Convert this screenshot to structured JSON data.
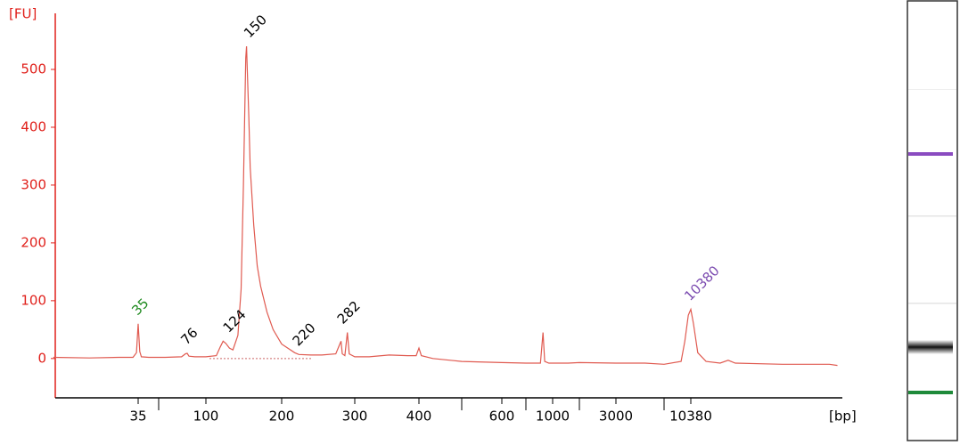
{
  "chart_data": {
    "type": "line",
    "ylabel": "[FU]",
    "xlabel": "[bp]",
    "axis_color": "#e0201b",
    "ylim": [
      -68,
      597
    ],
    "yticks": [
      0,
      100,
      200,
      300,
      400,
      500
    ],
    "xlim": [
      8,
      90000
    ],
    "xticks": [
      35,
      100,
      200,
      300,
      400,
      600,
      1000,
      3000,
      10380
    ],
    "xminorticks": [
      50,
      500,
      700,
      2000,
      7000
    ],
    "series": [
      {
        "color": "#e05a50",
        "x": [
          8,
          15,
          25,
          32,
          34,
          35,
          36,
          37,
          42,
          55,
          70,
          74,
          76,
          78,
          85,
          100,
          110,
          114,
          117,
          120,
          124,
          128,
          134,
          138,
          141,
          144,
          145,
          146,
          148,
          150,
          155,
          160,
          165,
          175,
          185,
          200,
          215,
          220,
          235,
          250,
          270,
          278,
          280,
          284,
          288,
          291,
          300,
          320,
          350,
          380,
          395,
          400,
          405,
          430,
          500,
          600,
          700,
          850,
          880,
          900,
          950,
          1500,
          2000,
          3000,
          5000,
          7000,
          9000,
          9500,
          10000,
          10380,
          10800,
          11500,
          13000,
          16000,
          18000,
          20000,
          40000,
          80000,
          90000
        ],
        "values": [
          2,
          1,
          2,
          2,
          10,
          60,
          12,
          3,
          2,
          2,
          3,
          8,
          9,
          4,
          3,
          3,
          5,
          20,
          30,
          26,
          18,
          15,
          40,
          120,
          300,
          520,
          540,
          500,
          420,
          330,
          230,
          160,
          125,
          80,
          50,
          25,
          10,
          7,
          6,
          6,
          8,
          30,
          8,
          5,
          45,
          8,
          3,
          3,
          6,
          5,
          5,
          18,
          5,
          0,
          -5,
          -7,
          -8,
          -8,
          45,
          -5,
          -8,
          -8,
          -7,
          -8,
          -8,
          -10,
          -5,
          30,
          75,
          85,
          60,
          10,
          -5,
          -8,
          -3,
          -8,
          -10,
          -10,
          -12
        ]
      }
    ],
    "peaks": {
      "x": [
        35,
        76,
        124,
        150,
        220,
        282,
        10380
      ],
      "values": [
        60,
        9,
        30,
        540,
        7,
        45,
        85
      ],
      "colors": [
        "#1f8a1f",
        "#000000",
        "#000000",
        "#000000",
        "#000000",
        "#000000",
        "#7b4bb0"
      ]
    }
  }
}
